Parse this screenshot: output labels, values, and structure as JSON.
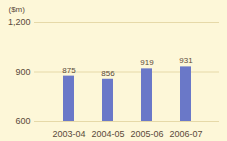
{
  "chart_data": {
    "type": "bar",
    "y_label": "($m)",
    "categories": [
      "2003-04",
      "2004-05",
      "2005-06",
      "2006-07"
    ],
    "values": [
      875,
      856,
      919,
      931
    ],
    "color": "#6a78c8",
    "ylim": [
      600,
      1200
    ],
    "yticks": [
      600,
      900,
      {
        "value": 1200,
        "label": "1,200"
      }
    ],
    "grid": true,
    "data_labels": true
  }
}
